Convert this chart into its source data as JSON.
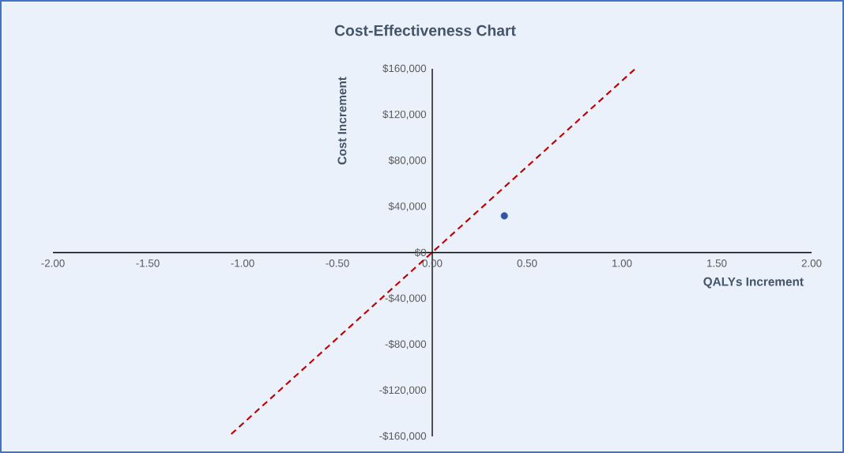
{
  "chart_data": {
    "type": "scatter",
    "title": "Cost-Effectiveness Chart",
    "xlabel": "QALYs Increment",
    "ylabel": "Cost Increment",
    "series": [
      {
        "type": "line",
        "color": "#c00000",
        "line_style": "dashed",
        "x": [
          -1.06,
          1.07
        ],
        "values": [
          -158000,
          160000
        ]
      },
      {
        "type": "scatter",
        "color": "#2f55a4",
        "marker": "circle",
        "x": [
          0.38
        ],
        "values": [
          32000
        ]
      }
    ],
    "xlim": [
      -2,
      2
    ],
    "ylim": [
      -160000,
      160000
    ],
    "xticks": [
      {
        "value": -2,
        "label": "-2.00"
      },
      {
        "value": -1.5,
        "label": "-1.50"
      },
      {
        "value": -1,
        "label": "-1.00"
      },
      {
        "value": -0.5,
        "label": "-0.50"
      },
      {
        "value": 0,
        "label": "0.00"
      },
      {
        "value": 0.5,
        "label": "0.50"
      },
      {
        "value": 1,
        "label": "1.00"
      },
      {
        "value": 1.5,
        "label": "1.50"
      },
      {
        "value": 2,
        "label": "2.00"
      }
    ],
    "yticks": [
      {
        "value": -160000,
        "label": "-$160,000"
      },
      {
        "value": -120000,
        "label": "-$120,000"
      },
      {
        "value": -80000,
        "label": "-$80,000"
      },
      {
        "value": -40000,
        "label": "-$40,000"
      },
      {
        "value": 0,
        "label": "$0"
      },
      {
        "value": 40000,
        "label": "$40,000"
      },
      {
        "value": 80000,
        "label": "$80,000"
      },
      {
        "value": 120000,
        "label": "$120,000"
      },
      {
        "value": 160000,
        "label": "$160,000"
      }
    ],
    "grid": false
  }
}
